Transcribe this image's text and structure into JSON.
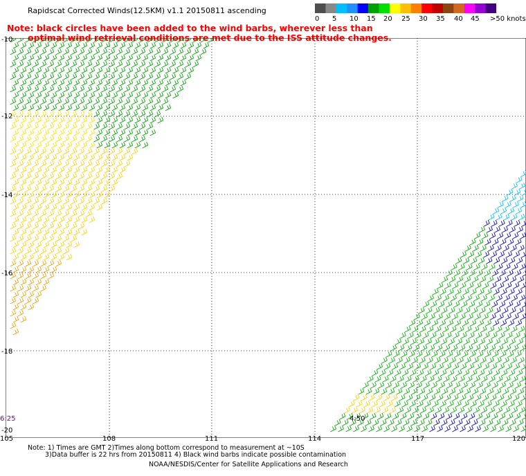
{
  "title": "Rapidscat Corrected Winds(12.5KM) v1.1 20150811 ascending",
  "note": {
    "line1": "Note: black circles have been added to the wind barbs, wherever less than",
    "line2": "optimal wind retrieval conditions are met due to the ISS attitude changes."
  },
  "colorbar": {
    "labels": [
      "0",
      "5",
      "10",
      "15",
      "20",
      "25",
      "30",
      "35",
      "40",
      "45",
      ">50 knots"
    ],
    "colors": [
      "#555555",
      "#00b0ff",
      "#00b0ff",
      "#0000ff",
      "#00c000",
      "#ffff00",
      "#ff8000",
      "#ff0000",
      "#a05000",
      "#ff00ff",
      "#8000ff"
    ],
    "swatches": [
      "#4d4d4d",
      "#888888",
      "#00bfff",
      "#1e90ff",
      "#0000ff",
      "#00a000",
      "#00e000",
      "#ffff00",
      "#ffc000",
      "#ff8000",
      "#ff0000",
      "#c00000",
      "#8b4513",
      "#d2691e",
      "#ff00ff",
      "#9400d3",
      "#400080"
    ]
  },
  "axes": {
    "lat_labels": [
      "-10",
      "-12",
      "-14",
      "-16",
      "-18",
      "-20"
    ],
    "lon_labels": [
      "105",
      "108",
      "111",
      "114",
      "117",
      "120"
    ]
  },
  "times": {
    "left": "6:25",
    "right": "4:50"
  },
  "footnote": {
    "line1": "Note: 1) Times are GMT 2)Times along bottom correspond to measurement at ~10S",
    "line2": "3)Data buffer is 22 hrs from 20150811 4) Black wind barbs indicate possible contamination"
  },
  "credit": "NOAA/NESDIS/Center for Satellite Applications and Research"
}
